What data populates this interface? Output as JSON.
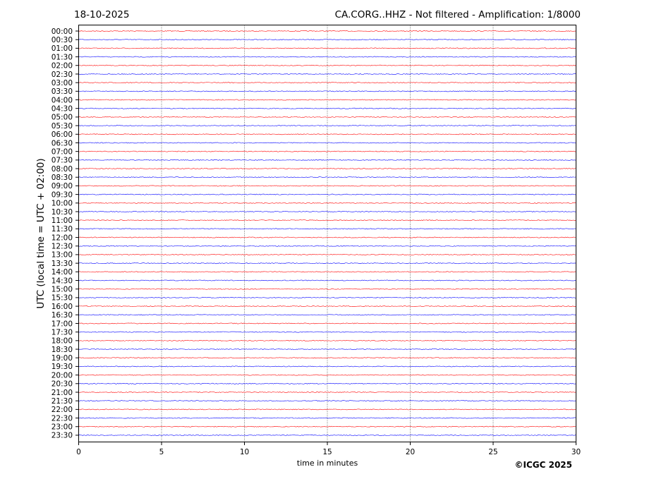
{
  "header": {
    "date": "18-10-2025",
    "title": "CA.CORG..HHZ - Not filtered - Amplification: 1/8000"
  },
  "copyright": "©ICGC 2025",
  "chart_data": {
    "type": "line",
    "title": "CA.CORG..HHZ - Not filtered - Amplification: 1/8000",
    "xlabel": "time in minutes",
    "ylabel": "UTC (local time = UTC + 02:00)",
    "xlim": [
      0,
      30
    ],
    "xticks": [
      0,
      5,
      10,
      15,
      20,
      25,
      30
    ],
    "grid": "vertical dotted lines at x ticks",
    "trace_colors": [
      "#ff0000",
      "#0000ff"
    ],
    "rows": [
      "00:00",
      "00:30",
      "01:00",
      "01:30",
      "02:00",
      "02:30",
      "03:00",
      "03:30",
      "04:00",
      "04:30",
      "05:00",
      "05:30",
      "06:00",
      "06:30",
      "07:00",
      "07:30",
      "08:00",
      "08:30",
      "09:00",
      "09:30",
      "10:00",
      "10:30",
      "11:00",
      "11:30",
      "12:00",
      "12:30",
      "13:00",
      "13:30",
      "14:00",
      "14:30",
      "15:00",
      "15:30",
      "16:00",
      "16:30",
      "17:00",
      "17:30",
      "18:00",
      "18:30",
      "19:00",
      "19:30",
      "20:00",
      "20:30",
      "21:00",
      "21:30",
      "22:00",
      "22:30",
      "23:00",
      "23:30"
    ]
  }
}
